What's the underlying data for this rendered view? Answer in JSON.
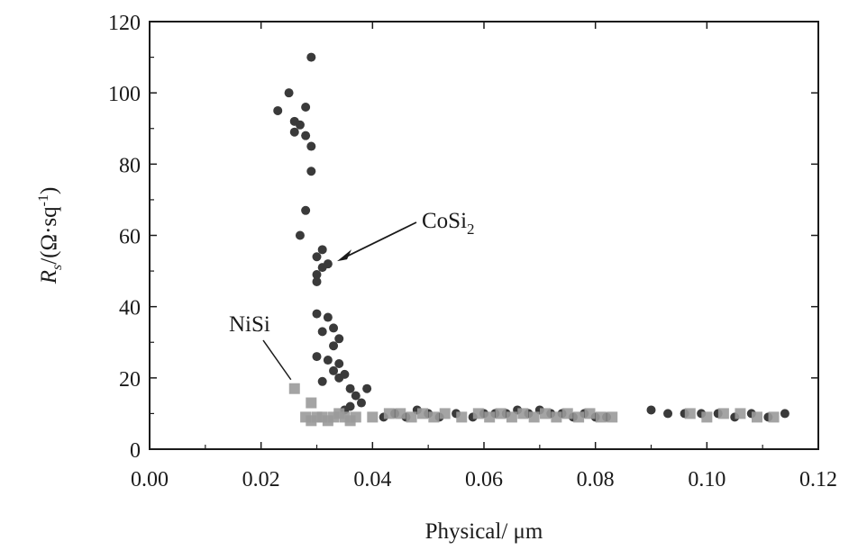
{
  "chart_data": {
    "type": "scatter",
    "title": "",
    "xlabel": "Physical/ μm",
    "ylabel_prefix": "R",
    "ylabel_sub": "s",
    "ylabel_suffix": "/(Ω·sq",
    "ylabel_sup": "-1",
    "ylabel_close": ")",
    "xlim": [
      0,
      0.12
    ],
    "ylim": [
      0,
      120
    ],
    "x_ticks": [
      0.0,
      0.02,
      0.04,
      0.06,
      0.08,
      0.1,
      0.12
    ],
    "x_tick_labels": [
      "0.00",
      "0.02",
      "0.04",
      "0.06",
      "0.08",
      "0.10",
      "0.12"
    ],
    "y_ticks": [
      0,
      20,
      40,
      60,
      80,
      100,
      120
    ],
    "y_tick_labels": [
      "0",
      "20",
      "40",
      "60",
      "80",
      "100",
      "120"
    ],
    "grid": false,
    "colors": {
      "cosi2": "#3a3a3a",
      "nisi": "#9a9a9a",
      "axis": "#1a1a1a"
    },
    "series": [
      {
        "key": "cosi2",
        "points": [
          [
            0.029,
            110
          ],
          [
            0.025,
            100
          ],
          [
            0.023,
            95
          ],
          [
            0.028,
            96
          ],
          [
            0.026,
            92
          ],
          [
            0.027,
            91
          ],
          [
            0.026,
            89
          ],
          [
            0.028,
            88
          ],
          [
            0.029,
            85
          ],
          [
            0.029,
            78
          ],
          [
            0.028,
            67
          ],
          [
            0.027,
            60
          ],
          [
            0.031,
            56
          ],
          [
            0.03,
            54
          ],
          [
            0.032,
            52
          ],
          [
            0.031,
            51
          ],
          [
            0.03,
            49
          ],
          [
            0.03,
            47
          ],
          [
            0.03,
            38
          ],
          [
            0.032,
            37
          ],
          [
            0.033,
            34
          ],
          [
            0.031,
            33
          ],
          [
            0.034,
            31
          ],
          [
            0.033,
            29
          ],
          [
            0.03,
            26
          ],
          [
            0.032,
            25
          ],
          [
            0.034,
            24
          ],
          [
            0.033,
            22
          ],
          [
            0.035,
            21
          ],
          [
            0.034,
            20
          ],
          [
            0.031,
            19
          ],
          [
            0.036,
            17
          ],
          [
            0.039,
            17
          ],
          [
            0.037,
            15
          ],
          [
            0.038,
            13
          ],
          [
            0.036,
            12
          ],
          [
            0.035,
            11
          ],
          [
            0.042,
            9
          ],
          [
            0.044,
            10
          ],
          [
            0.046,
            9
          ],
          [
            0.048,
            11
          ],
          [
            0.05,
            10
          ],
          [
            0.052,
            9
          ],
          [
            0.055,
            10
          ],
          [
            0.058,
            9
          ],
          [
            0.06,
            10
          ],
          [
            0.062,
            10
          ],
          [
            0.064,
            10
          ],
          [
            0.066,
            11
          ],
          [
            0.068,
            10
          ],
          [
            0.07,
            11
          ],
          [
            0.072,
            10
          ],
          [
            0.074,
            10
          ],
          [
            0.076,
            9
          ],
          [
            0.078,
            10
          ],
          [
            0.08,
            9
          ],
          [
            0.082,
            9
          ],
          [
            0.09,
            11
          ],
          [
            0.093,
            10
          ],
          [
            0.096,
            10
          ],
          [
            0.099,
            10
          ],
          [
            0.102,
            10
          ],
          [
            0.105,
            9
          ],
          [
            0.108,
            10
          ],
          [
            0.111,
            9
          ],
          [
            0.114,
            10
          ]
        ]
      },
      {
        "key": "nisi",
        "points": [
          [
            0.026,
            17
          ],
          [
            0.029,
            13
          ],
          [
            0.028,
            9
          ],
          [
            0.029,
            8
          ],
          [
            0.03,
            9
          ],
          [
            0.031,
            9
          ],
          [
            0.032,
            8
          ],
          [
            0.033,
            9
          ],
          [
            0.034,
            10
          ],
          [
            0.035,
            9
          ],
          [
            0.036,
            8
          ],
          [
            0.037,
            9
          ],
          [
            0.04,
            9
          ],
          [
            0.043,
            10
          ],
          [
            0.045,
            10
          ],
          [
            0.047,
            9
          ],
          [
            0.049,
            10
          ],
          [
            0.051,
            9
          ],
          [
            0.053,
            10
          ],
          [
            0.056,
            9
          ],
          [
            0.059,
            10
          ],
          [
            0.061,
            9
          ],
          [
            0.063,
            10
          ],
          [
            0.065,
            9
          ],
          [
            0.067,
            10
          ],
          [
            0.069,
            9
          ],
          [
            0.071,
            10
          ],
          [
            0.073,
            9
          ],
          [
            0.075,
            10
          ],
          [
            0.077,
            9
          ],
          [
            0.079,
            10
          ],
          [
            0.081,
            9
          ],
          [
            0.083,
            9
          ],
          [
            0.097,
            10
          ],
          [
            0.1,
            9
          ],
          [
            0.103,
            10
          ],
          [
            0.106,
            10
          ],
          [
            0.109,
            9
          ],
          [
            0.112,
            9
          ]
        ]
      }
    ],
    "annotations": [
      {
        "key": "cosi2",
        "text": "CoSi",
        "sub": "2",
        "target": [
          0.033,
          52
        ]
      },
      {
        "key": "nisi",
        "text": "NiSi",
        "target": [
          0.026,
          18
        ]
      }
    ]
  }
}
